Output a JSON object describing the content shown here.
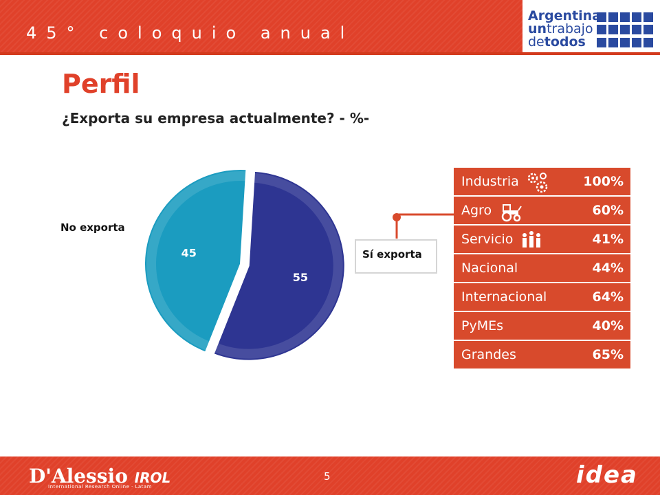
{
  "header": {
    "event_label": "45° coloquio anual",
    "brand_line1": "Argentina",
    "brand_line2a": "un",
    "brand_line2b": "trabajo",
    "brand_line3a": "de",
    "brand_line3b": "todos"
  },
  "page": {
    "title": "Perfil",
    "subtitle": "¿Exporta su empresa actualmente? - %-"
  },
  "chart_data": {
    "type": "pie",
    "title": "",
    "slices": [
      {
        "label": "No exporta",
        "value": 45,
        "color": "#1b9cc0"
      },
      {
        "label": "Sí exporta",
        "value": 55,
        "color": "#2e3592"
      }
    ]
  },
  "labels": {
    "no_exporta": "No exporta",
    "si_exporta": "Sí exporta"
  },
  "breakdown": {
    "rows": [
      {
        "label": "Industria",
        "value": "100%",
        "icon": "gears-icon"
      },
      {
        "label": "Agro",
        "value": "60%",
        "icon": "tractor-icon"
      },
      {
        "label": "Servicio",
        "value": "41%",
        "icon": "people-icon"
      },
      {
        "label": "Nacional",
        "value": "44%",
        "icon": ""
      },
      {
        "label": "Internacional",
        "value": "64%",
        "icon": ""
      },
      {
        "label": "PyMEs",
        "value": "40%",
        "icon": ""
      },
      {
        "label": "Grandes",
        "value": "65%",
        "icon": ""
      }
    ]
  },
  "footer": {
    "left_logo": "D'Alessio",
    "left_logo_suffix": "IROL",
    "left_logo_sub": "International Research Online · Latam",
    "page_number": "5",
    "right_logo": "idea"
  },
  "colors": {
    "accent_red": "#e0412a",
    "table_red": "#d84a2c",
    "pie_blue_dark": "#2e3592",
    "pie_blue_light": "#1b9cc0"
  }
}
